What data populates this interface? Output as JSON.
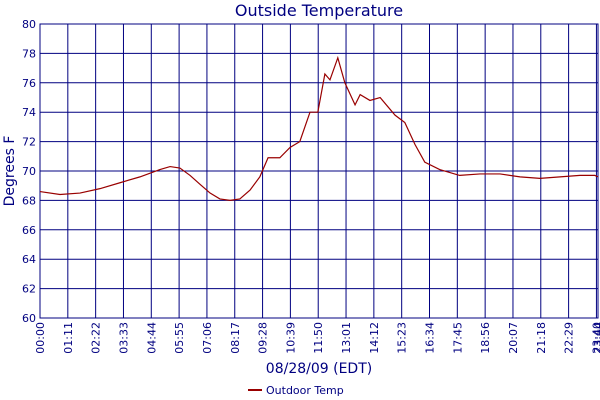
{
  "chart_data": {
    "type": "line",
    "title": "Outside Temperature",
    "x_label": "08/28/09 (EDT)",
    "y_label": "Degrees F",
    "x": [
      0,
      51,
      102,
      153,
      204,
      255,
      306,
      332,
      357,
      383,
      408,
      434,
      459,
      485,
      510,
      536,
      561,
      582,
      612,
      638,
      663,
      689,
      709,
      727,
      740,
      760,
      778,
      804,
      817,
      842,
      868,
      906,
      931,
      957,
      982,
      1020,
      1071,
      1123,
      1174,
      1225,
      1276,
      1327,
      1378,
      1416,
      1424
    ],
    "series": [
      {
        "name": "Outdoor Temp",
        "color": "#990000",
        "values": [
          68.6,
          68.4,
          68.5,
          68.8,
          69.2,
          69.6,
          70.1,
          70.3,
          70.2,
          69.7,
          69.1,
          68.5,
          68.1,
          68.0,
          68.1,
          68.7,
          69.6,
          70.9,
          70.9,
          71.6,
          72.0,
          74.0,
          74.0,
          76.6,
          76.2,
          77.7,
          76.0,
          74.5,
          75.2,
          74.8,
          75.0,
          73.8,
          73.3,
          71.8,
          70.6,
          70.1,
          69.7,
          69.8,
          69.8,
          69.6,
          69.5,
          69.6,
          69.7,
          69.7,
          69.6
        ]
      }
    ],
    "xlim": [
      0,
      1424
    ],
    "xticks": [
      {
        "value": 0,
        "label": "00:00"
      },
      {
        "value": 71,
        "label": "01:11"
      },
      {
        "value": 142,
        "label": "02:22"
      },
      {
        "value": 213,
        "label": "03:33"
      },
      {
        "value": 284,
        "label": "04:44"
      },
      {
        "value": 355,
        "label": "05:55"
      },
      {
        "value": 426,
        "label": "07:06"
      },
      {
        "value": 497,
        "label": "08:17"
      },
      {
        "value": 568,
        "label": "09:28"
      },
      {
        "value": 639,
        "label": "10:39"
      },
      {
        "value": 710,
        "label": "11:50"
      },
      {
        "value": 781,
        "label": "13:01"
      },
      {
        "value": 852,
        "label": "14:12"
      },
      {
        "value": 923,
        "label": "15:23"
      },
      {
        "value": 994,
        "label": "16:34"
      },
      {
        "value": 1065,
        "label": "17:45"
      },
      {
        "value": 1136,
        "label": "18:56"
      },
      {
        "value": 1207,
        "label": "20:07"
      },
      {
        "value": 1278,
        "label": "21:18"
      },
      {
        "value": 1349,
        "label": "22:29"
      },
      {
        "value": 1420,
        "label": "23:40"
      },
      {
        "value": 1424,
        "label": "23:44"
      }
    ],
    "ylim": [
      60,
      80
    ],
    "yticks": [
      60,
      62,
      64,
      66,
      68,
      70,
      72,
      74,
      76,
      78,
      80
    ],
    "grid": true,
    "legend": "bottom"
  }
}
